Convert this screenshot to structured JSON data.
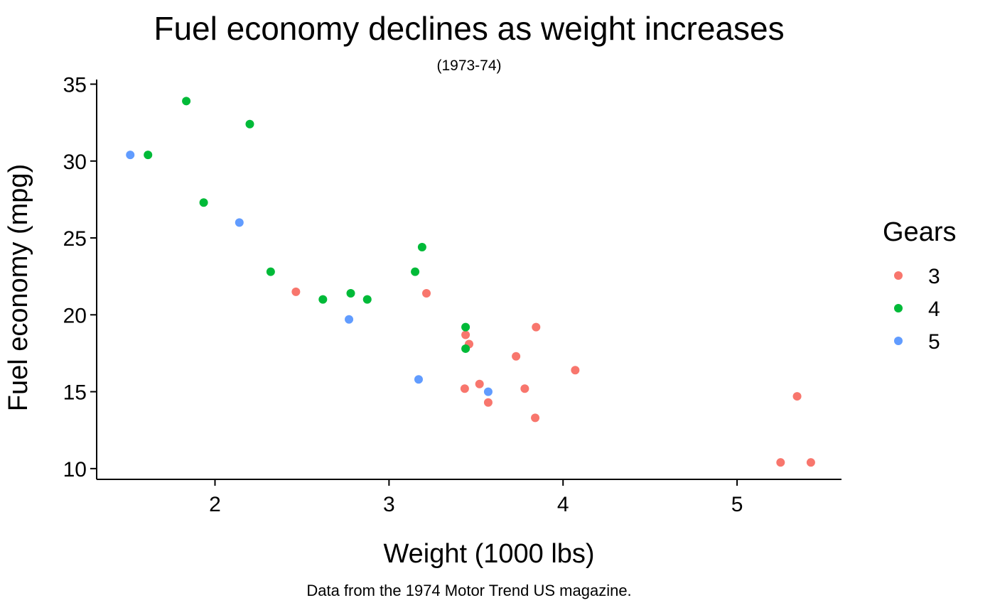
{
  "chart_data": {
    "type": "scatter",
    "title": "Fuel economy declines as weight increases",
    "subtitle": "(1973-74)",
    "caption": "Data from the 1974 Motor Trend US magazine.",
    "xlabel": "Weight (1000 lbs)",
    "ylabel": "Fuel economy (mpg)",
    "xlim": [
      1.32,
      5.6
    ],
    "ylim": [
      9.3,
      35.3
    ],
    "xticks": [
      2,
      3,
      4,
      5
    ],
    "yticks": [
      10,
      15,
      20,
      25,
      30,
      35
    ],
    "grid": false,
    "legend": {
      "title": "Gears",
      "placement": "right"
    },
    "series": [
      {
        "name": "3",
        "color": "#F8766D",
        "points": [
          [
            3.215,
            21.4
          ],
          [
            3.44,
            18.7
          ],
          [
            3.46,
            18.1
          ],
          [
            3.57,
            14.3
          ],
          [
            4.07,
            16.4
          ],
          [
            3.73,
            17.3
          ],
          [
            3.78,
            15.2
          ],
          [
            5.25,
            10.4
          ],
          [
            5.424,
            10.4
          ],
          [
            5.345,
            14.7
          ],
          [
            2.465,
            21.5
          ],
          [
            3.52,
            15.5
          ],
          [
            3.435,
            15.2
          ],
          [
            3.84,
            13.3
          ],
          [
            3.845,
            19.2
          ]
        ]
      },
      {
        "name": "4",
        "color": "#00BA38",
        "points": [
          [
            2.62,
            21.0
          ],
          [
            2.875,
            21.0
          ],
          [
            2.32,
            22.8
          ],
          [
            3.19,
            24.4
          ],
          [
            3.15,
            22.8
          ],
          [
            3.44,
            19.2
          ],
          [
            3.44,
            17.8
          ],
          [
            2.2,
            32.4
          ],
          [
            1.615,
            30.4
          ],
          [
            1.835,
            33.9
          ],
          [
            1.935,
            27.3
          ],
          [
            2.78,
            21.4
          ]
        ]
      },
      {
        "name": "5",
        "color": "#619CFF",
        "points": [
          [
            2.14,
            26.0
          ],
          [
            1.513,
            30.4
          ],
          [
            3.17,
            15.8
          ],
          [
            2.77,
            19.7
          ],
          [
            3.57,
            15.0
          ]
        ]
      }
    ]
  }
}
